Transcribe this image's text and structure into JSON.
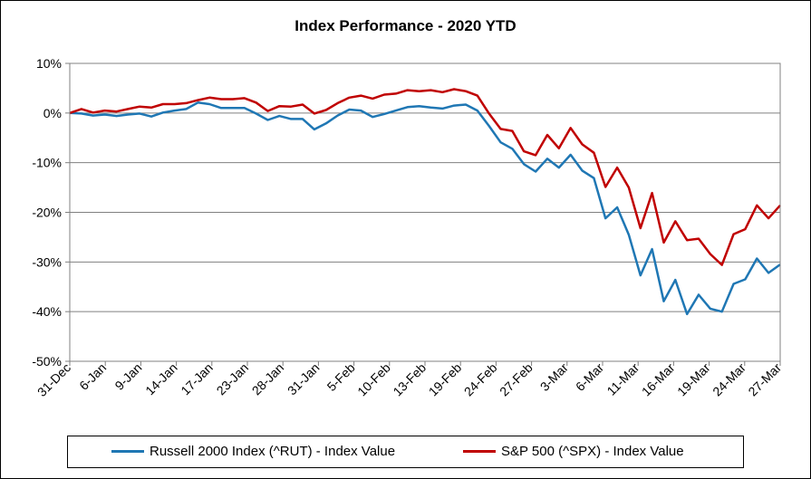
{
  "chart_data": {
    "type": "line",
    "title": "Index Performance - 2020 YTD",
    "xlabel": "",
    "ylabel": "",
    "ylim": [
      -50,
      10
    ],
    "y_ticks": [
      10,
      0,
      -10,
      -20,
      -30,
      -40,
      -50
    ],
    "y_tick_labels": [
      "10%",
      "0%",
      "-10%",
      "-20%",
      "-30%",
      "-40%",
      "-50%"
    ],
    "x_tick_labels": [
      "31-Dec",
      "6-Jan",
      "9-Jan",
      "14-Jan",
      "17-Jan",
      "23-Jan",
      "28-Jan",
      "31-Jan",
      "5-Feb",
      "10-Feb",
      "13-Feb",
      "19-Feb",
      "24-Feb",
      "27-Feb",
      "3-Mar",
      "6-Mar",
      "11-Mar",
      "16-Mar",
      "19-Mar",
      "24-Mar",
      "27-Mar"
    ],
    "grid": "horizontal",
    "legend": "bottom",
    "series": [
      {
        "name": "Russell 2000 Index (^RUT) - Index Value",
        "color": "#1f77b4",
        "values": [
          0,
          -0.1,
          -0.5,
          -0.3,
          -0.6,
          -0.3,
          -0.1,
          -0.7,
          0.1,
          0.5,
          0.8,
          2.1,
          1.8,
          1.0,
          1.0,
          1.0,
          -0.1,
          -1.4,
          -0.6,
          -1.2,
          -1.2,
          -3.3,
          -2.1,
          -0.5,
          0.7,
          0.5,
          -0.8,
          -0.2,
          0.5,
          1.2,
          1.4,
          1.1,
          0.9,
          1.5,
          1.7,
          0.5,
          -2.6,
          -5.9,
          -7.2,
          -10.3,
          -11.8,
          -9.2,
          -11.0,
          -8.4,
          -11.6,
          -13.1,
          -21.2,
          -19.0,
          -24.5,
          -32.7,
          -27.4,
          -37.9,
          -33.6,
          -40.5,
          -36.6,
          -39.4,
          -40.0,
          -34.4,
          -33.5,
          -29.3,
          -32.2,
          -30.5
        ]
      },
      {
        "name": "S&P 500 (^SPX) - Index Value",
        "color": "#c00000",
        "values": [
          0,
          0.8,
          0.1,
          0.5,
          0.3,
          0.8,
          1.3,
          1.1,
          1.8,
          1.8,
          2.0,
          2.6,
          3.1,
          2.8,
          2.8,
          3.0,
          2.1,
          0.4,
          1.4,
          1.3,
          1.7,
          -0.1,
          0.6,
          2.0,
          3.1,
          3.5,
          2.9,
          3.7,
          3.9,
          4.6,
          4.4,
          4.6,
          4.2,
          4.8,
          4.4,
          3.5,
          -0.1,
          -3.2,
          -3.6,
          -7.7,
          -8.5,
          -4.4,
          -7.1,
          -3.0,
          -6.3,
          -8.0,
          -14.9,
          -11.0,
          -15.0,
          -23.2,
          -16.1,
          -26.1,
          -21.8,
          -25.6,
          -25.3,
          -28.4,
          -30.6,
          -24.4,
          -23.4,
          -18.6,
          -21.2,
          -18.6
        ]
      }
    ]
  }
}
